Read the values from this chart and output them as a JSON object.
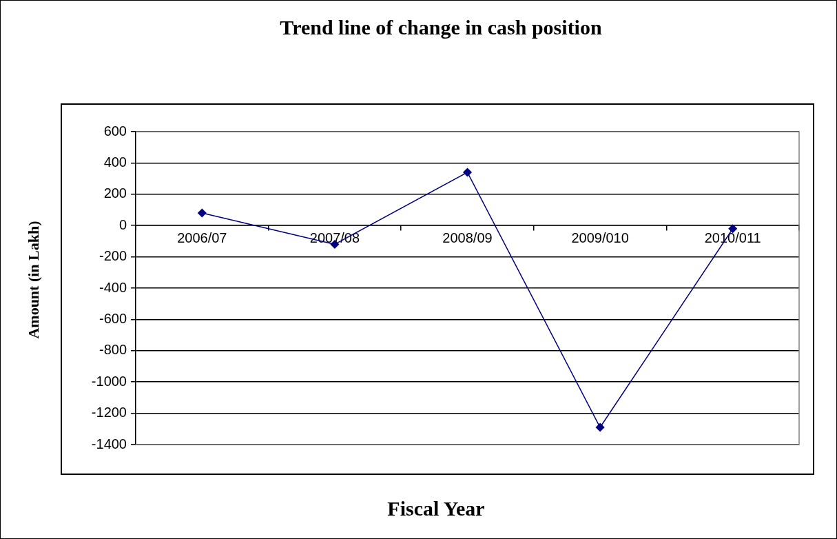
{
  "chart_data": {
    "type": "line",
    "title": "Trend line of change in cash position",
    "xlabel": "Fiscal Year",
    "ylabel": "Amount (in Lakh)",
    "categories": [
      "2006/07",
      "2007/08",
      "2008/09",
      "2009/010",
      "2010/011"
    ],
    "series": [
      {
        "color": "#000080",
        "values": [
          80,
          -120,
          340,
          -1290,
          -20
        ]
      }
    ],
    "ylim": [
      -1400,
      600
    ],
    "yticks": [
      -1400,
      -1200,
      -1000,
      -800,
      -600,
      -400,
      -200,
      0,
      200,
      400,
      600
    ],
    "grid": "y",
    "marker": "diamond"
  }
}
